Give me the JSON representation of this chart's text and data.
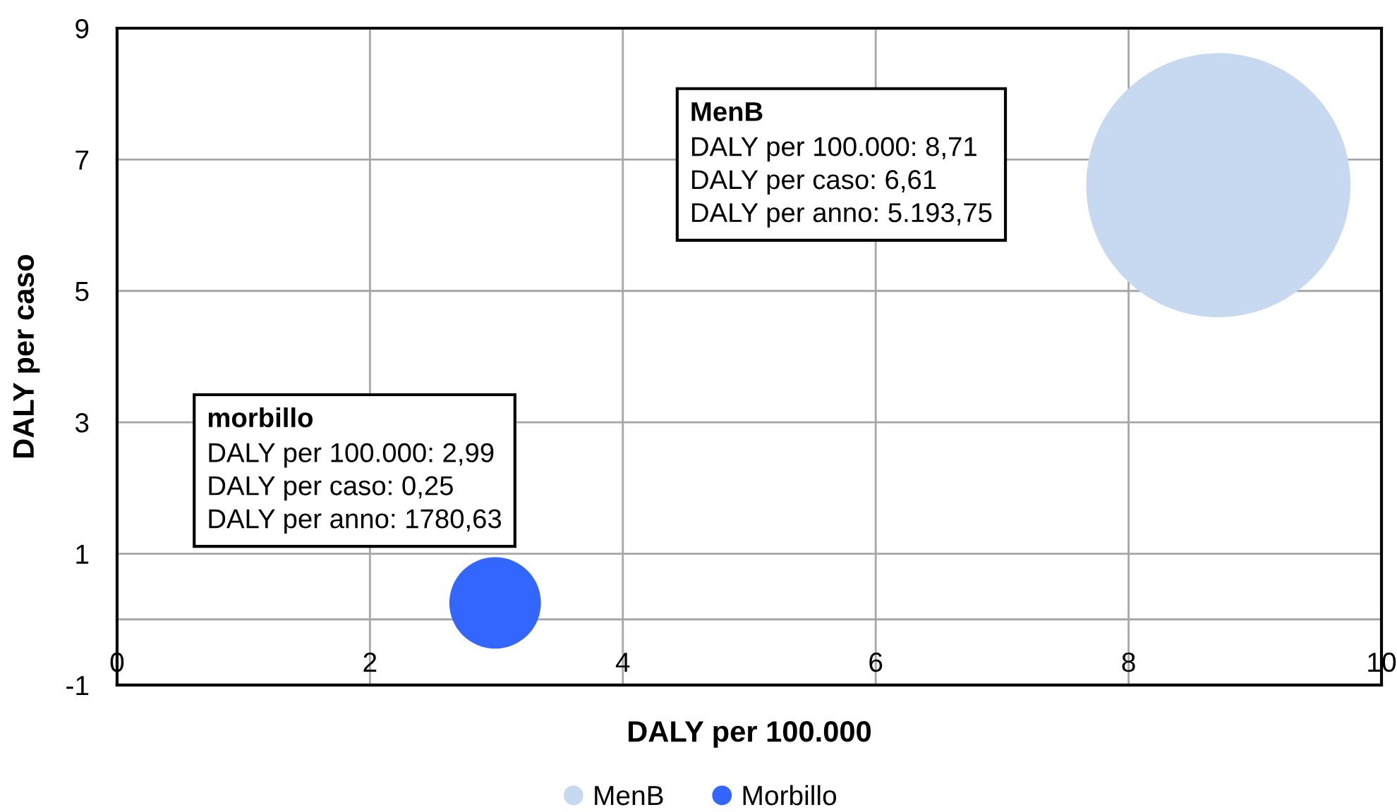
{
  "chart_data": {
    "type": "bubble",
    "xlabel": "DALY per 100.000",
    "ylabel": "DALY per caso",
    "xlim": [
      0,
      10
    ],
    "xticks": [
      0,
      2,
      4,
      6,
      8,
      10
    ],
    "ylim": [
      -1,
      9
    ],
    "yticks": [
      -1,
      1,
      3,
      5,
      7,
      9
    ],
    "grid": true,
    "legend": "bottom",
    "marker": "circle",
    "ref_lines": [
      {
        "axis": "y",
        "value": 0,
        "color": "#a6a6a6"
      }
    ],
    "series": [
      {
        "name": "MenB",
        "color": "#c6d9f0",
        "x": [
          8.71
        ],
        "values": [
          6.61
        ],
        "sizes": [
          1
        ]
      },
      {
        "name": "Morbillo",
        "color": "#3366ff",
        "x": [
          2.99
        ],
        "values": [
          0.25
        ],
        "sizes": [
          0.12
        ]
      }
    ],
    "annotations": [
      "MenB\nDALY per 100.000: 8,71\nDALY per caso: 6,61\nDALY per anno: 5.193,75",
      "morbillo\nDALY per 100.000: 2,99\nDALY per caso: 0,25\nDALY per anno: 1780,63"
    ]
  }
}
